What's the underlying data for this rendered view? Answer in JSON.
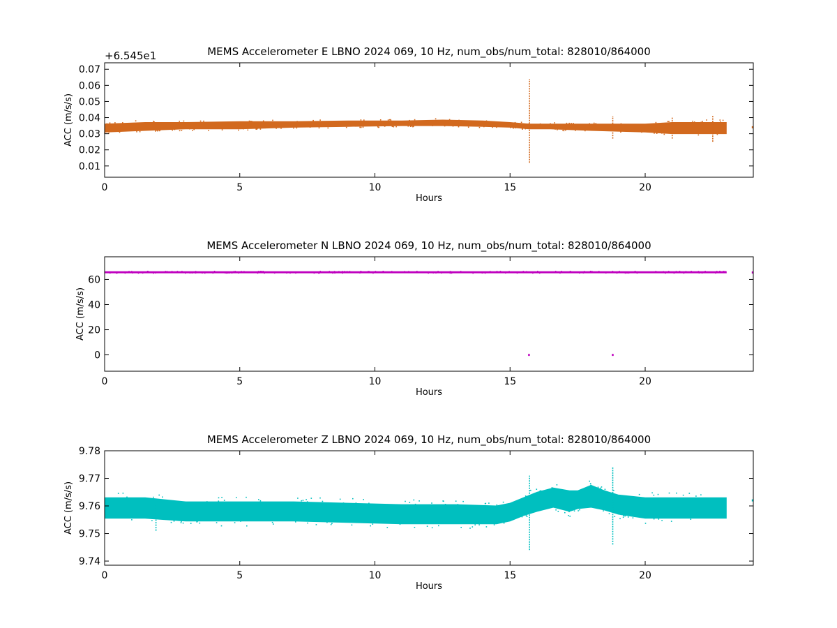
{
  "chart_data": [
    {
      "type": "scatter",
      "title": "MEMS Accelerometer E LBNO 2024 069, 10 Hz, num_obs/num_total: 828010/864000",
      "xlabel": "Hours",
      "ylabel": "ACC (m/s/s)",
      "offset_text": "+6.545e1",
      "color": "#d2691e",
      "xlim": [
        0,
        24
      ],
      "ylim": [
        0.003,
        0.074
      ],
      "xticks": [
        0,
        5,
        10,
        15,
        20
      ],
      "yticks": [
        0.01,
        0.02,
        0.03,
        0.04,
        0.05,
        0.06,
        0.07
      ],
      "ytick_labels": [
        "0.01",
        "0.02",
        "0.03",
        "0.04",
        "0.05",
        "0.06",
        "0.07"
      ],
      "band": {
        "x": [
          0,
          1.5,
          3,
          5,
          7,
          9,
          11,
          12.5,
          14,
          15,
          15.7,
          16.5,
          18,
          20,
          21,
          22,
          23
        ],
        "y_low": [
          0.031,
          0.032,
          0.033,
          0.033,
          0.034,
          0.0345,
          0.035,
          0.035,
          0.0345,
          0.034,
          0.033,
          0.033,
          0.032,
          0.031,
          0.03,
          0.03,
          0.03
        ],
        "y_high": [
          0.036,
          0.037,
          0.037,
          0.0375,
          0.0375,
          0.038,
          0.038,
          0.0385,
          0.038,
          0.037,
          0.036,
          0.036,
          0.036,
          0.036,
          0.037,
          0.037,
          0.037
        ]
      },
      "spikes": [
        {
          "x": 15.72,
          "y_min": 0.012,
          "y_max": 0.064
        },
        {
          "x": 18.8,
          "y_min": 0.027,
          "y_max": 0.041
        },
        {
          "x": 21.0,
          "y_min": 0.027,
          "y_max": 0.04
        },
        {
          "x": 22.5,
          "y_min": 0.025,
          "y_max": 0.041
        }
      ],
      "tail_points": [
        {
          "x": 24.0,
          "y": 0.034
        }
      ]
    },
    {
      "type": "scatter",
      "title": "MEMS Accelerometer N LBNO 2024 069, 10 Hz, num_obs/num_total: 828010/864000",
      "xlabel": "Hours",
      "ylabel": "ACC (m/s/s)",
      "offset_text": "",
      "color": "#bf00bf",
      "xlim": [
        0,
        24
      ],
      "ylim": [
        -13,
        78
      ],
      "xticks": [
        0,
        5,
        10,
        15,
        20
      ],
      "yticks": [
        0,
        20,
        40,
        60
      ],
      "ytick_labels": [
        "0",
        "20",
        "40",
        "60"
      ],
      "band": {
        "x": [
          0,
          23
        ],
        "y_low": [
          65.2,
          65.2
        ],
        "y_high": [
          66.2,
          66.2
        ]
      },
      "spikes": [],
      "tail_points": [
        {
          "x": 15.7,
          "y": 0
        },
        {
          "x": 18.8,
          "y": 0
        },
        {
          "x": 24.0,
          "y": 65.5
        }
      ]
    },
    {
      "type": "scatter",
      "title": "MEMS Accelerometer Z LBNO 2024 069, 10 Hz, num_obs/num_total: 828010/864000",
      "xlabel": "Hours",
      "ylabel": "ACC (m/s/s)",
      "offset_text": "",
      "color": "#00bfbf",
      "xlim": [
        0,
        24
      ],
      "ylim": [
        9.7385,
        9.78
      ],
      "xticks": [
        0,
        5,
        10,
        15,
        20
      ],
      "yticks": [
        9.74,
        9.75,
        9.76,
        9.77,
        9.78
      ],
      "ytick_labels": [
        "9.74",
        "9.75",
        "9.76",
        "9.77",
        "9.78"
      ],
      "band": {
        "x": [
          0,
          1.5,
          3,
          5,
          7,
          9,
          11,
          13,
          14.5,
          15,
          15.5,
          16,
          16.6,
          17.2,
          17.5,
          18,
          18.5,
          19,
          20,
          21,
          22,
          23
        ],
        "y_low": [
          9.7555,
          9.7555,
          9.7545,
          9.7545,
          9.7545,
          9.754,
          9.7535,
          9.7535,
          9.7535,
          9.7545,
          9.7565,
          9.758,
          9.7595,
          9.758,
          9.759,
          9.7595,
          9.7585,
          9.757,
          9.7555,
          9.7555,
          9.7555,
          9.7555
        ],
        "y_high": [
          9.763,
          9.763,
          9.7615,
          9.7615,
          9.7615,
          9.761,
          9.7605,
          9.7605,
          9.76,
          9.761,
          9.763,
          9.765,
          9.7665,
          9.7655,
          9.7655,
          9.7675,
          9.7655,
          9.764,
          9.763,
          9.763,
          9.763,
          9.763
        ]
      },
      "spikes": [
        {
          "x": 15.72,
          "y_min": 9.744,
          "y_max": 9.771
        },
        {
          "x": 18.8,
          "y_min": 9.746,
          "y_max": 9.774
        },
        {
          "x": 1.9,
          "y_min": 9.751,
          "y_max": 9.761
        }
      ],
      "tail_points": [
        {
          "x": 24.0,
          "y": 9.762
        }
      ]
    }
  ]
}
